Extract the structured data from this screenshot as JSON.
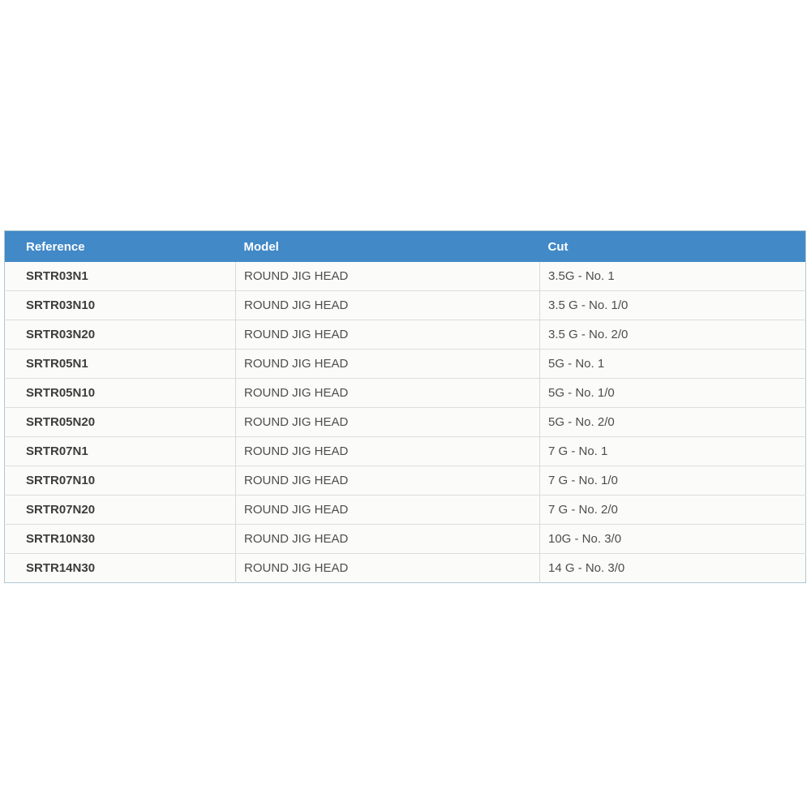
{
  "chart_data": {
    "type": "table",
    "columns": [
      "Reference",
      "Model",
      "Cut"
    ],
    "rows": [
      [
        "SRTR03N1",
        "ROUND JIG HEAD",
        "3.5G - No. 1"
      ],
      [
        "SRTR03N10",
        "ROUND JIG HEAD",
        "3.5 G - No. 1/0"
      ],
      [
        "SRTR03N20",
        "ROUND JIG HEAD",
        "3.5 G - No. 2/0"
      ],
      [
        "SRTR05N1",
        "ROUND JIG HEAD",
        "5G - No. 1"
      ],
      [
        "SRTR05N10",
        "ROUND JIG HEAD",
        "5G - No. 1/0"
      ],
      [
        "SRTR05N20",
        "ROUND JIG HEAD",
        "5G - No. 2/0"
      ],
      [
        "SRTR07N1",
        "ROUND JIG HEAD",
        "7 G - No. 1"
      ],
      [
        "SRTR07N10",
        "ROUND JIG HEAD",
        "7 G - No. 1/0"
      ],
      [
        "SRTR07N20",
        "ROUND JIG HEAD",
        "7 G - No. 2/0"
      ],
      [
        "SRTR10N30",
        "ROUND JIG HEAD",
        "10G - No. 3/0"
      ],
      [
        "SRTR14N30",
        "ROUND JIG HEAD",
        "14 G - No. 3/0"
      ]
    ]
  },
  "colors": {
    "header_bg": "#4189c7",
    "header_text": "#ffffff",
    "row_bg": "#fbfbf9",
    "reference_text": "#3c3c3c",
    "cell_text": "#4d4d4d",
    "row_divider": "#dddddd",
    "column_divider": "#d9d9d9",
    "outer_border": "#aec7d2"
  }
}
